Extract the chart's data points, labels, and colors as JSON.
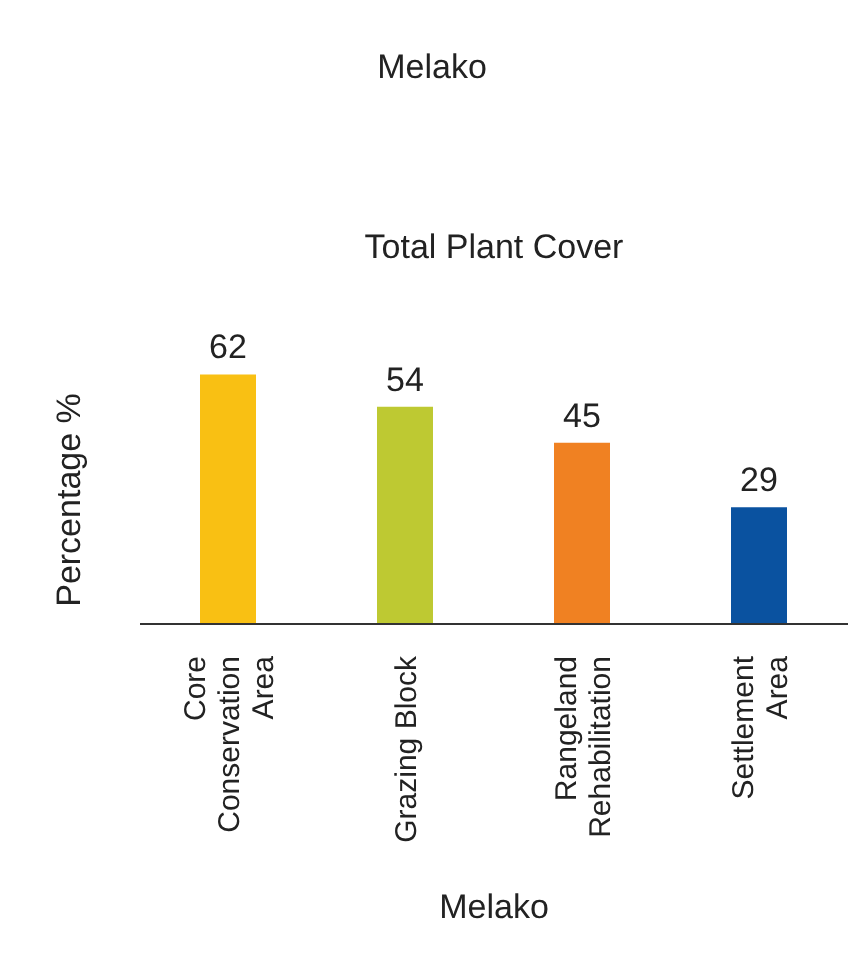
{
  "chart_data": {
    "type": "bar",
    "title": "Melako",
    "subtitle": "Total Plant Cover",
    "xlabel": "Melako",
    "ylabel": "Percentage %",
    "categories": [
      "Core Conservation Area",
      "Grazing Block",
      "Rangeland Rehabilitation",
      "Settlement Area"
    ],
    "values": [
      62,
      54,
      45,
      29
    ],
    "colors": [
      "#f9c013",
      "#bec932",
      "#f08122",
      "#0a52a0"
    ],
    "data_labels": true,
    "tick_labels": "x",
    "grid": false,
    "legend": false
  }
}
